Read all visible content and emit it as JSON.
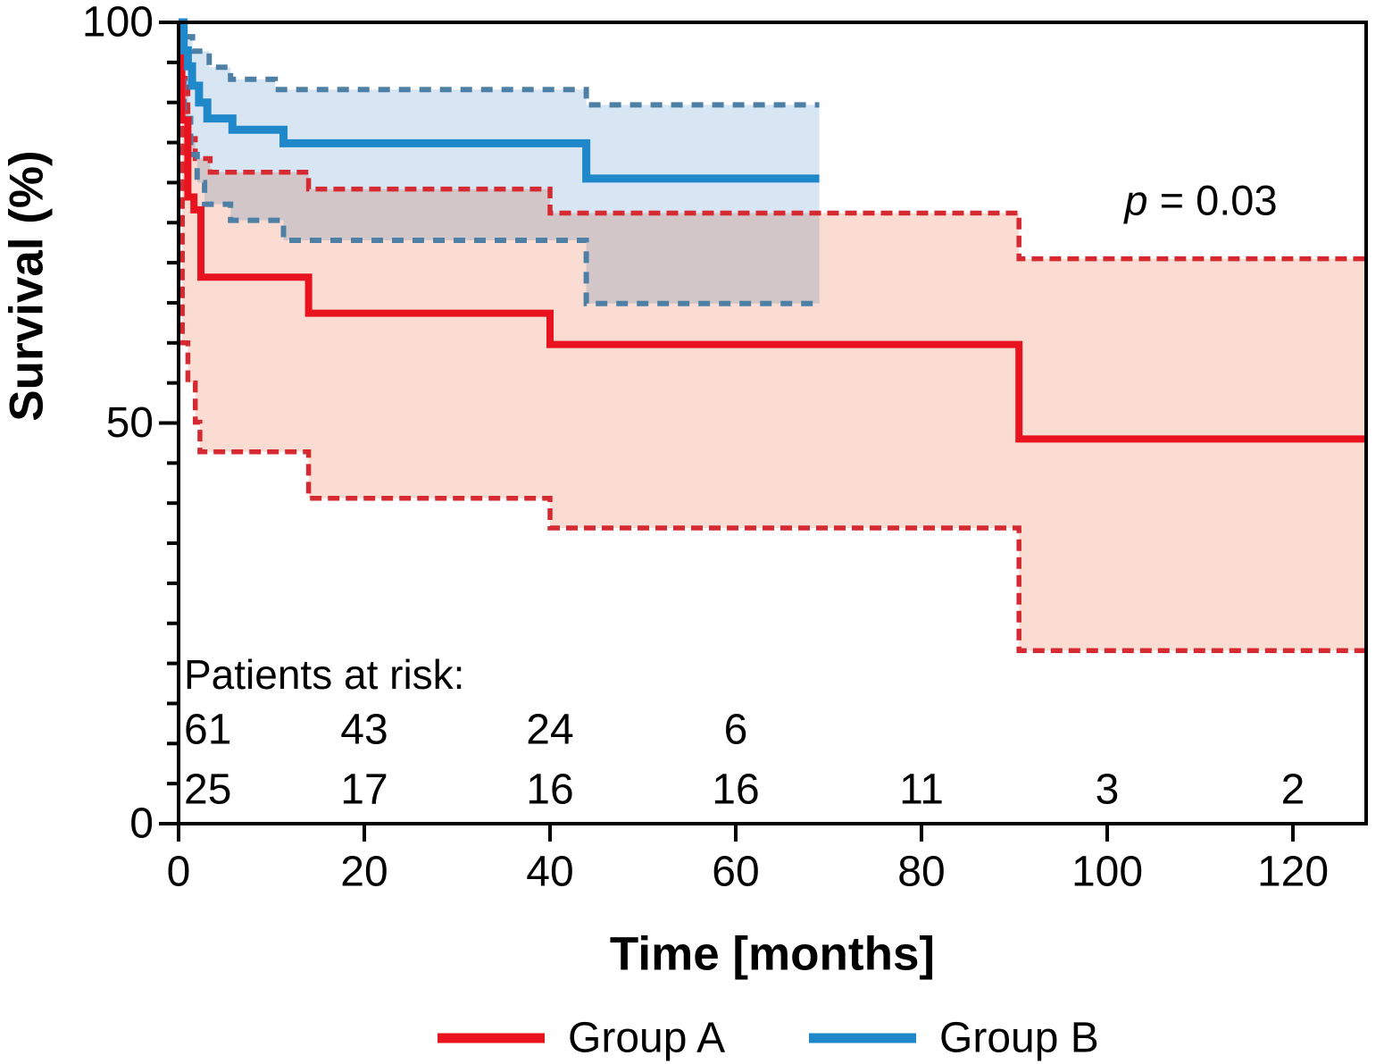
{
  "chart_data": {
    "type": "line",
    "subtype": "kaplan-meier-step-with-ci",
    "title": "",
    "xlabel": "Time [months]",
    "ylabel": "Survival (%)",
    "annotation": {
      "symbol": "p",
      "text": " = 0.03",
      "display": "p = 0.03"
    },
    "xlim": [
      0,
      128
    ],
    "ylim": [
      0,
      100
    ],
    "x_ticks": [
      0,
      20,
      40,
      60,
      80,
      100,
      120
    ],
    "y_ticks_major": [
      0,
      50,
      100
    ],
    "y_tick_minor_step": 5,
    "grid": false,
    "legend_position": "bottom-center",
    "axis_color": "#000000",
    "series": [
      {
        "name": "Group A",
        "role": "survival",
        "line": "solid",
        "color": "#e8131e",
        "points": [
          [
            0,
            100
          ],
          [
            0.35,
            87.8
          ],
          [
            1,
            78.2
          ],
          [
            1.65,
            76.6
          ],
          [
            2.4,
            68.2
          ],
          [
            14,
            63.7
          ],
          [
            40,
            59.8
          ],
          [
            90.5,
            48
          ],
          [
            128,
            48
          ]
        ]
      },
      {
        "name": "Group A 95% CI upper",
        "role": "ci-upper",
        "group": "Group A",
        "line": "dashed",
        "color": "#d62a32",
        "points": [
          [
            0,
            100
          ],
          [
            0.4,
            93
          ],
          [
            1,
            85.5
          ],
          [
            1.8,
            83
          ],
          [
            3.4,
            81.3
          ],
          [
            14,
            79.2
          ],
          [
            40,
            76.2
          ],
          [
            90.5,
            70.5
          ],
          [
            128,
            70.5
          ]
        ]
      },
      {
        "name": "Group A 95% CI lower",
        "role": "ci-lower",
        "group": "Group A",
        "line": "dashed",
        "color": "#d62a32",
        "points": [
          [
            0,
            100
          ],
          [
            0.4,
            60
          ],
          [
            1,
            55
          ],
          [
            1.8,
            50.1
          ],
          [
            2.3,
            46.4
          ],
          [
            14,
            40.6
          ],
          [
            40,
            36.9
          ],
          [
            90.5,
            21.6
          ],
          [
            128,
            21.6
          ]
        ]
      },
      {
        "name": "Group B",
        "role": "survival",
        "line": "solid",
        "color": "#1f88ca",
        "points": [
          [
            0,
            100
          ],
          [
            0.55,
            96.5
          ],
          [
            1,
            94.5
          ],
          [
            1.45,
            92.1
          ],
          [
            2.2,
            90
          ],
          [
            3.1,
            88
          ],
          [
            5.8,
            86.6
          ],
          [
            11.3,
            84.9
          ],
          [
            43.9,
            80.5
          ],
          [
            69,
            80.5
          ]
        ]
      },
      {
        "name": "Group B 95% CI upper",
        "role": "ci-upper",
        "group": "Group B",
        "line": "dashed",
        "color": "#4e80a6",
        "points": [
          [
            0,
            100
          ],
          [
            0.5,
            98.2
          ],
          [
            1.5,
            96.4
          ],
          [
            3.3,
            94.4
          ],
          [
            5.6,
            92.9
          ],
          [
            10.4,
            91.6
          ],
          [
            43.9,
            89.7
          ],
          [
            69,
            89.7
          ]
        ]
      },
      {
        "name": "Group B 95% CI lower",
        "role": "ci-lower",
        "group": "Group B",
        "line": "dashed",
        "color": "#4e80a6",
        "points": [
          [
            0,
            100
          ],
          [
            0.6,
            88
          ],
          [
            1.3,
            83.5
          ],
          [
            2,
            80
          ],
          [
            2.8,
            77.3
          ],
          [
            5.6,
            75.3
          ],
          [
            11.3,
            72.8
          ],
          [
            43.9,
            64.9
          ],
          [
            69,
            64.9
          ]
        ]
      }
    ],
    "bands": [
      {
        "group": "Group A",
        "fill": "#fadcd2"
      },
      {
        "group": "Group B",
        "fill": "#d8e6f4",
        "blend": "multiply"
      }
    ],
    "risk_table": {
      "heading": "Patients at risk:",
      "rows": [
        {
          "times": [
            0,
            20,
            40,
            60
          ],
          "counts": [
            "61",
            "43",
            "24",
            "6"
          ]
        },
        {
          "times": [
            0,
            20,
            40,
            60,
            80,
            100,
            120
          ],
          "counts": [
            "25",
            "17",
            "16",
            "16",
            "11",
            "3",
            "2"
          ]
        }
      ]
    },
    "legend": [
      {
        "label": "Group A",
        "color": "#e8131e"
      },
      {
        "label": "Group B",
        "color": "#1f88ca"
      }
    ]
  }
}
